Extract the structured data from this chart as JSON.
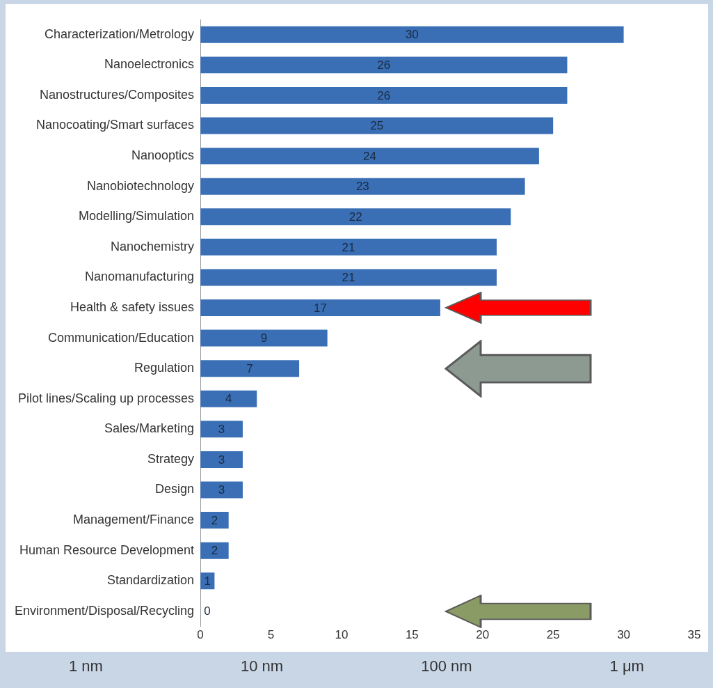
{
  "chart_data": {
    "type": "bar",
    "orientation": "horizontal",
    "categories": [
      "Characterization/Metrology",
      "Nanoelectronics",
      "Nanostructures/Composites",
      "Nanocoating/Smart surfaces",
      "Nanooptics",
      "Nanobiotechnology",
      "Modelling/Simulation",
      "Nanochemistry",
      "Nanomanufacturing",
      "Health & safety issues",
      "Communication/Education",
      "Regulation",
      "Pilot lines/Scaling up processes",
      "Sales/Marketing",
      "Strategy",
      "Design",
      "Management/Finance",
      "Human Resource Development",
      "Standardization",
      "Environment/Disposal/Recycling"
    ],
    "values": [
      30,
      26,
      26,
      25,
      24,
      23,
      22,
      21,
      21,
      17,
      9,
      7,
      4,
      3,
      3,
      3,
      2,
      2,
      1,
      0
    ],
    "color": "#3a6fb5",
    "xlim": [
      0,
      35
    ],
    "xticks": [
      0,
      5,
      10,
      15,
      20,
      25,
      30,
      35
    ],
    "data_labels": true,
    "grid": false,
    "legend": false,
    "annotations": [
      "1 nm",
      "10 nm",
      "100 nm",
      "1 μm"
    ]
  }
}
